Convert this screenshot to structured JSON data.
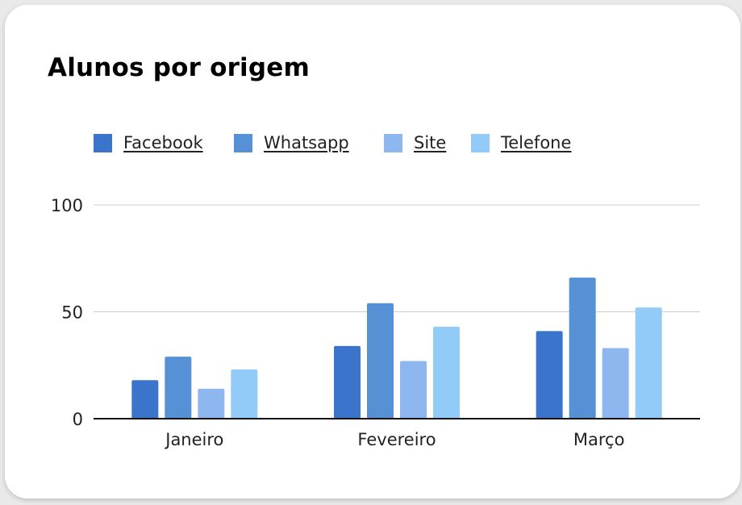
{
  "card": {
    "title": "Alunos por origem"
  },
  "chart_data": {
    "type": "bar",
    "title": "Alunos por origem",
    "xlabel": "",
    "ylabel": "",
    "categories": [
      "Janeiro",
      "Fevereiro",
      "Março"
    ],
    "series": [
      {
        "name": "Facebook",
        "color": "#3a75cb",
        "values": [
          18,
          34,
          41
        ]
      },
      {
        "name": "Whatsapp",
        "color": "#5791d5",
        "values": [
          29,
          54,
          66
        ]
      },
      {
        "name": "Site",
        "color": "#8db7ee",
        "values": [
          14,
          27,
          33
        ]
      },
      {
        "name": "Telefone",
        "color": "#93cbf8",
        "values": [
          23,
          43,
          52
        ]
      }
    ],
    "ylim": [
      0,
      100
    ],
    "yticks": [
      "0",
      "50",
      "100"
    ],
    "grid": true,
    "legend_position": "top-left"
  }
}
